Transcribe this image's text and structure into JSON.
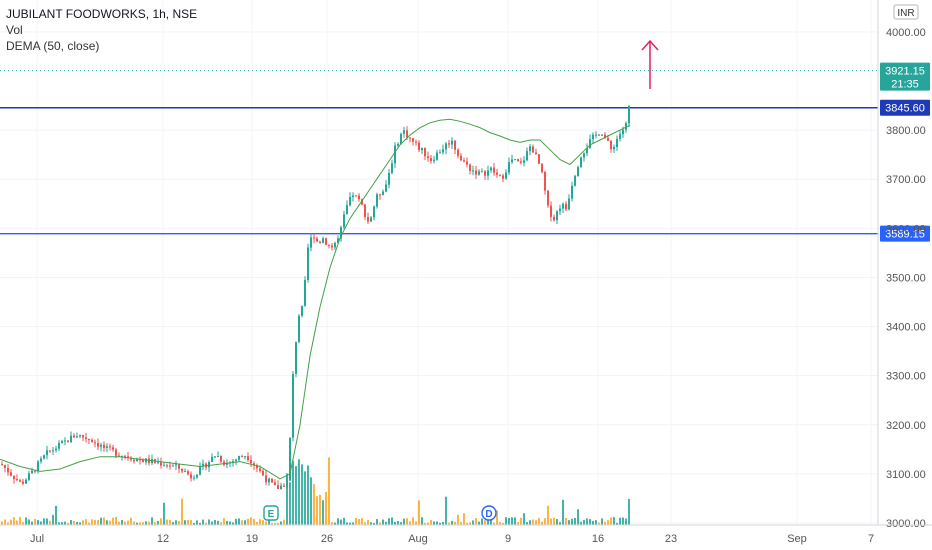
{
  "header": {
    "symbol_line": "JUBILANT FOODWORKS, 1h, NSE",
    "volume_label": "Vol",
    "indicator_label": "DEMA (50, close)"
  },
  "currency": "INR",
  "chart_data": {
    "type": "candlestick",
    "title": "JUBILANT FOODWORKS, 1h, NSE",
    "ylim": [
      2945,
      4065
    ],
    "y_ticks": [
      3000,
      3100,
      3200,
      3300,
      3400,
      3500,
      3600,
      3700,
      3800,
      4000
    ],
    "y_tick_labels": [
      "3000.00",
      "3100.00",
      "3200.00",
      "3300.00",
      "3400.00",
      "3500.00",
      "3600.00",
      "3700.00",
      "3800.00",
      "4000.00"
    ],
    "x_tick_labels": [
      "Jul",
      "12",
      "19",
      "26",
      "Aug",
      "9",
      "16",
      "23",
      "Sep",
      "7"
    ],
    "price_path": [
      [
        0,
        3120
      ],
      [
        10,
        3100
      ],
      [
        20,
        3080
      ],
      [
        30,
        3100
      ],
      [
        45,
        3140
      ],
      [
        60,
        3160
      ],
      [
        75,
        3180
      ],
      [
        90,
        3170
      ],
      [
        105,
        3150
      ],
      [
        120,
        3140
      ],
      [
        135,
        3130
      ],
      [
        150,
        3125
      ],
      [
        165,
        3120
      ],
      [
        180,
        3110
      ],
      [
        190,
        3095
      ],
      [
        200,
        3110
      ],
      [
        215,
        3140
      ],
      [
        225,
        3120
      ],
      [
        235,
        3130
      ],
      [
        245,
        3140
      ],
      [
        255,
        3115
      ],
      [
        265,
        3090
      ],
      [
        275,
        3070
      ],
      [
        280,
        3075
      ],
      [
        287,
        3085
      ],
      [
        292,
        3300
      ],
      [
        297,
        3420
      ],
      [
        302,
        3440
      ],
      [
        307,
        3560
      ],
      [
        312,
        3590
      ],
      [
        317,
        3570
      ],
      [
        322,
        3580
      ],
      [
        330,
        3560
      ],
      [
        338,
        3580
      ],
      [
        345,
        3640
      ],
      [
        352,
        3670
      ],
      [
        360,
        3650
      ],
      [
        368,
        3610
      ],
      [
        375,
        3660
      ],
      [
        385,
        3690
      ],
      [
        395,
        3770
      ],
      [
        402,
        3800
      ],
      [
        410,
        3780
      ],
      [
        420,
        3760
      ],
      [
        430,
        3740
      ],
      [
        440,
        3760
      ],
      [
        450,
        3780
      ],
      [
        460,
        3740
      ],
      [
        470,
        3720
      ],
      [
        480,
        3710
      ],
      [
        490,
        3720
      ],
      [
        500,
        3700
      ],
      [
        510,
        3740
      ],
      [
        520,
        3730
      ],
      [
        530,
        3770
      ],
      [
        540,
        3720
      ],
      [
        547,
        3640
      ],
      [
        553,
        3620
      ],
      [
        560,
        3650
      ],
      [
        565,
        3640
      ],
      [
        572,
        3700
      ],
      [
        580,
        3750
      ],
      [
        590,
        3780
      ],
      [
        600,
        3800
      ],
      [
        610,
        3760
      ],
      [
        618,
        3790
      ],
      [
        625,
        3810
      ],
      [
        628,
        3850
      ],
      [
        630,
        3921
      ]
    ],
    "dema_path": [
      [
        0,
        3130
      ],
      [
        20,
        3115
      ],
      [
        40,
        3105
      ],
      [
        60,
        3110
      ],
      [
        80,
        3125
      ],
      [
        100,
        3135
      ],
      [
        120,
        3135
      ],
      [
        140,
        3130
      ],
      [
        160,
        3125
      ],
      [
        180,
        3120
      ],
      [
        200,
        3115
      ],
      [
        220,
        3120
      ],
      [
        240,
        3125
      ],
      [
        260,
        3115
      ],
      [
        280,
        3090
      ],
      [
        290,
        3100
      ],
      [
        300,
        3200
      ],
      [
        310,
        3340
      ],
      [
        320,
        3440
      ],
      [
        330,
        3520
      ],
      [
        340,
        3580
      ],
      [
        350,
        3620
      ],
      [
        360,
        3650
      ],
      [
        370,
        3680
      ],
      [
        380,
        3710
      ],
      [
        390,
        3740
      ],
      [
        400,
        3770
      ],
      [
        410,
        3790
      ],
      [
        420,
        3805
      ],
      [
        430,
        3815
      ],
      [
        440,
        3820
      ],
      [
        450,
        3822
      ],
      [
        460,
        3818
      ],
      [
        470,
        3812
      ],
      [
        480,
        3805
      ],
      [
        490,
        3795
      ],
      [
        500,
        3788
      ],
      [
        510,
        3780
      ],
      [
        520,
        3775
      ],
      [
        530,
        3780
      ],
      [
        540,
        3780
      ],
      [
        550,
        3760
      ],
      [
        560,
        3740
      ],
      [
        570,
        3730
      ],
      [
        580,
        3750
      ],
      [
        590,
        3770
      ],
      [
        600,
        3780
      ],
      [
        610,
        3790
      ],
      [
        620,
        3800
      ],
      [
        630,
        3810
      ]
    ],
    "horizontal_levels": [
      {
        "value": 3845.6,
        "label": "3845.60",
        "color": "#1e3ab8"
      },
      {
        "value": 3589.15,
        "label": "3589.15",
        "color": "#2962ff"
      }
    ],
    "last_price": {
      "value": 3921.15,
      "label": "3921.15",
      "countdown": "21:35",
      "color": "#26a69a"
    },
    "events": [
      {
        "letter": "E",
        "color": "#26a69a"
      },
      {
        "letter": "D",
        "color": "#2962ff"
      }
    ],
    "colors": {
      "up": "#26a69a",
      "down": "#ef5350",
      "dema": "#43a047",
      "volume_up": "#26a69a",
      "volume_down": "#f9a825",
      "arrow": "#e91e63"
    }
  }
}
